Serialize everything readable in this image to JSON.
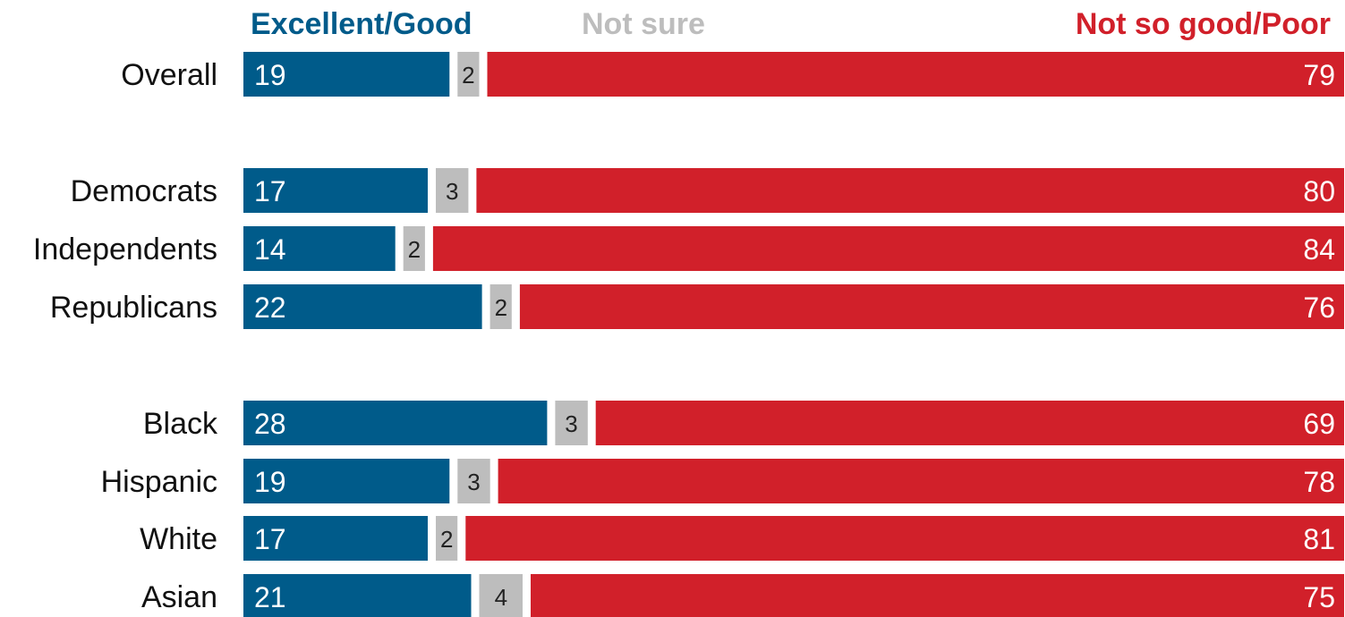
{
  "chart_data": {
    "type": "bar",
    "orientation": "horizontal",
    "stacked": true,
    "categories": [
      "Overall",
      "Democrats",
      "Independents",
      "Republicans",
      "Black",
      "Hispanic",
      "White",
      "Asian"
    ],
    "groups": [
      [
        "Overall"
      ],
      [
        "Democrats",
        "Independents",
        "Republicans"
      ],
      [
        "Black",
        "Hispanic",
        "White",
        "Asian"
      ]
    ],
    "series": [
      {
        "name": "Excellent/Good",
        "color": "#005b8a",
        "values": [
          19,
          17,
          14,
          22,
          28,
          19,
          17,
          21
        ]
      },
      {
        "name": "Not sure",
        "color": "#bdbdbd",
        "values": [
          2,
          3,
          2,
          2,
          3,
          3,
          2,
          4
        ]
      },
      {
        "name": "Not so good/Poor",
        "color": "#d1202a",
        "values": [
          79,
          80,
          84,
          76,
          69,
          78,
          81,
          75
        ]
      }
    ],
    "xlim": [
      0,
      100
    ],
    "legend_position": "top",
    "grid": false
  }
}
